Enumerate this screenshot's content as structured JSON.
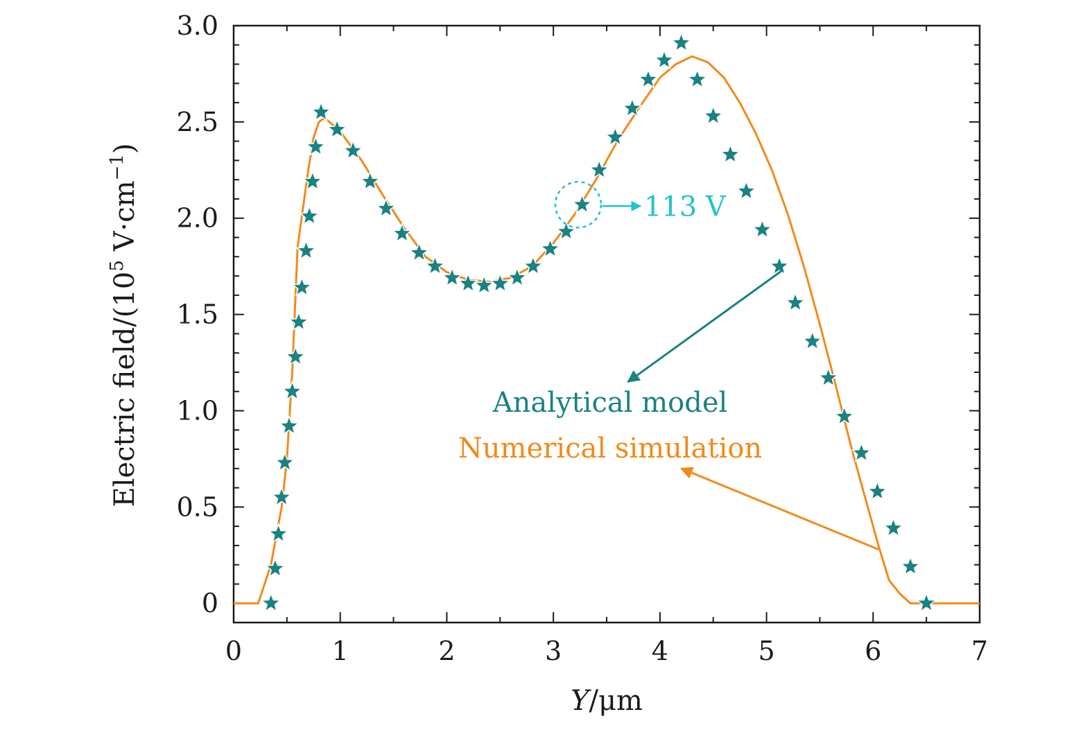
{
  "chart_data": {
    "type": "line",
    "title": "",
    "xlabel": "Y/μm",
    "xlabel_var": "Y",
    "xlabel_unit": "/μm",
    "ylabel": "Electric field/(10⁵ V·cm⁻¹)",
    "ylabel_main": "Electric field/(10",
    "ylabel_exp": "5",
    "ylabel_mid": " V·cm",
    "ylabel_exp2": "−1",
    "ylabel_end": ")",
    "xlim": [
      0,
      7
    ],
    "ylim": [
      -0.1,
      3.0
    ],
    "xticks": [
      0,
      1,
      2,
      3,
      4,
      5,
      6,
      7
    ],
    "xtick_labels": [
      "0",
      "1",
      "2",
      "3",
      "4",
      "5",
      "6",
      "7"
    ],
    "yticks": [
      0,
      0.5,
      1.0,
      1.5,
      2.0,
      2.5,
      3.0
    ],
    "ytick_labels": [
      "0",
      "0.5",
      "1.0",
      "1.5",
      "2.0",
      "2.5",
      "3.0"
    ],
    "grid": false,
    "series": [
      {
        "name": "Numerical simulation",
        "type": "line",
        "color": "#f28a1a",
        "x": [
          0,
          0.23,
          0.35,
          0.45,
          0.5,
          0.55,
          0.6,
          0.65,
          0.7,
          0.75,
          0.8,
          0.85,
          0.9,
          1.0,
          1.2,
          1.4,
          1.6,
          1.8,
          2.0,
          2.2,
          2.4,
          2.6,
          2.8,
          3.0,
          3.2,
          3.4,
          3.6,
          3.8,
          4.0,
          4.15,
          4.3,
          4.45,
          4.6,
          4.75,
          4.9,
          5.05,
          5.2,
          5.35,
          5.5,
          5.65,
          5.8,
          5.95,
          6.05,
          6.15,
          6.25,
          6.35,
          6.5,
          6.7,
          7.0
        ],
        "values": [
          0.0,
          0.0,
          0.2,
          0.5,
          0.75,
          1.2,
          1.85,
          2.05,
          2.25,
          2.42,
          2.5,
          2.52,
          2.5,
          2.45,
          2.3,
          2.12,
          1.95,
          1.8,
          1.72,
          1.68,
          1.67,
          1.69,
          1.75,
          1.87,
          2.02,
          2.2,
          2.4,
          2.57,
          2.73,
          2.8,
          2.84,
          2.81,
          2.73,
          2.6,
          2.44,
          2.25,
          2.02,
          1.75,
          1.45,
          1.13,
          0.8,
          0.5,
          0.3,
          0.12,
          0.05,
          0.0,
          0.0,
          0.0,
          0.0
        ]
      },
      {
        "name": "Analytical model",
        "type": "scatter",
        "marker": "star",
        "color": "#1a8282",
        "x": [
          0.35,
          0.39,
          0.42,
          0.45,
          0.48,
          0.52,
          0.55,
          0.58,
          0.61,
          0.64,
          0.68,
          0.71,
          0.74,
          0.77,
          0.82,
          0.97,
          1.12,
          1.28,
          1.43,
          1.58,
          1.74,
          1.89,
          2.05,
          2.2,
          2.35,
          2.5,
          2.66,
          2.81,
          2.97,
          3.12,
          3.27,
          3.43,
          3.58,
          3.74,
          3.89,
          4.04,
          4.2,
          4.35,
          4.5,
          4.66,
          4.81,
          4.96,
          5.12,
          5.27,
          5.43,
          5.58,
          5.73,
          5.89,
          6.04,
          6.19,
          6.35,
          6.5
        ],
        "values": [
          0.0,
          0.18,
          0.36,
          0.55,
          0.73,
          0.92,
          1.1,
          1.28,
          1.46,
          1.64,
          1.83,
          2.01,
          2.19,
          2.37,
          2.55,
          2.46,
          2.35,
          2.19,
          2.05,
          1.92,
          1.82,
          1.75,
          1.69,
          1.66,
          1.65,
          1.66,
          1.69,
          1.75,
          1.84,
          1.93,
          2.07,
          2.25,
          2.42,
          2.57,
          2.72,
          2.82,
          2.91,
          2.72,
          2.53,
          2.33,
          2.14,
          1.94,
          1.75,
          1.56,
          1.36,
          1.17,
          0.97,
          0.78,
          0.58,
          0.39,
          0.19,
          0.0
        ]
      }
    ],
    "annotations": {
      "voltage_label": "113 V",
      "voltage_point": {
        "x": 3.33,
        "y": 2.07
      },
      "legend_analytical": "Analytical model",
      "legend_numerical": "Numerical simulation",
      "analytical_arrow_from": {
        "x": 5.15,
        "y": 1.73
      },
      "analytical_arrow_to": {
        "x": 3.7,
        "y": 1.15
      },
      "numerical_arrow_from": {
        "x": 6.05,
        "y": 0.28
      },
      "numerical_arrow_to": {
        "x": 4.2,
        "y": 0.7
      }
    },
    "colors": {
      "analytical": "#1a8282",
      "numerical": "#f28a1a",
      "callout": "#22c4c8",
      "axis": "#1a1a1a"
    }
  }
}
